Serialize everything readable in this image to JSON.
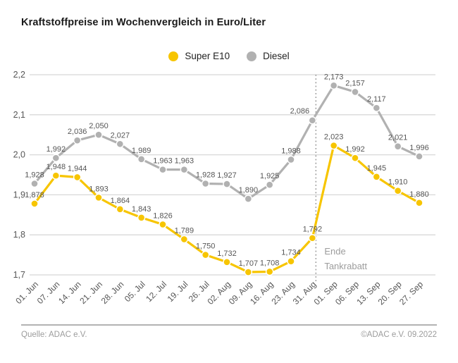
{
  "title": "Kraftstoffpreise im Wochenvergleich in Euro/Liter",
  "legend": {
    "items": [
      {
        "label": "Super E10",
        "color": "#F7C500"
      },
      {
        "label": "Diesel",
        "color": "#B1B1B1"
      }
    ]
  },
  "chart_data": {
    "type": "line",
    "title": "Kraftstoffpreise im Wochenvergleich in Euro/Liter",
    "xlabel": "",
    "ylabel": "Euro/Liter",
    "ylim": [
      1.7,
      2.2
    ],
    "yticks": [
      2.2,
      2.1,
      2.0,
      1.9,
      1.8,
      1.7
    ],
    "grid": true,
    "legend_position": "top-center",
    "decimal_separator": ",",
    "categories": [
      "01. Jun",
      "07. Jun",
      "14. Jun",
      "21. Jun",
      "28. Jun",
      "05. Jul",
      "12. Jul",
      "19. Jul",
      "26. Jul",
      "02. Aug",
      "09. Aug",
      "16. Aug",
      "23. Aug",
      "31. Aug",
      "01. Sep",
      "06. Sep",
      "13. Sep",
      "20. Sep",
      "27. Sep"
    ],
    "series": [
      {
        "name": "Diesel",
        "color": "#B1B1B1",
        "values": [
          1.928,
          1.992,
          2.036,
          2.05,
          2.027,
          1.989,
          1.963,
          1.963,
          1.928,
          1.927,
          1.89,
          1.925,
          1.988,
          2.086,
          2.173,
          2.157,
          2.117,
          2.021,
          1.996
        ]
      },
      {
        "name": "Super E10",
        "color": "#F7C500",
        "values": [
          1.878,
          1.948,
          1.944,
          1.893,
          1.864,
          1.843,
          1.826,
          1.789,
          1.75,
          1.732,
          1.707,
          1.708,
          1.734,
          1.792,
          2.023,
          1.992,
          1.945,
          1.91,
          1.88
        ]
      }
    ],
    "annotation": {
      "lines": [
        "Ende",
        "Tankrabatt"
      ],
      "at_category": "31. Aug",
      "style": "dotted-vertical-line"
    }
  },
  "footer": {
    "source": "Quelle: ADAC e.V.",
    "copyright": "©ADAC e.V.  09.2022"
  },
  "colors": {
    "super_e10": "#F7C500",
    "diesel": "#B1B1B1",
    "grid": "#D8D8D8",
    "tick_text": "#565656",
    "point_label_text": "#565656",
    "annotation_text": "#9C9C9C",
    "footer_text": "#9C9C9C",
    "title_text": "#1A1A1A"
  }
}
